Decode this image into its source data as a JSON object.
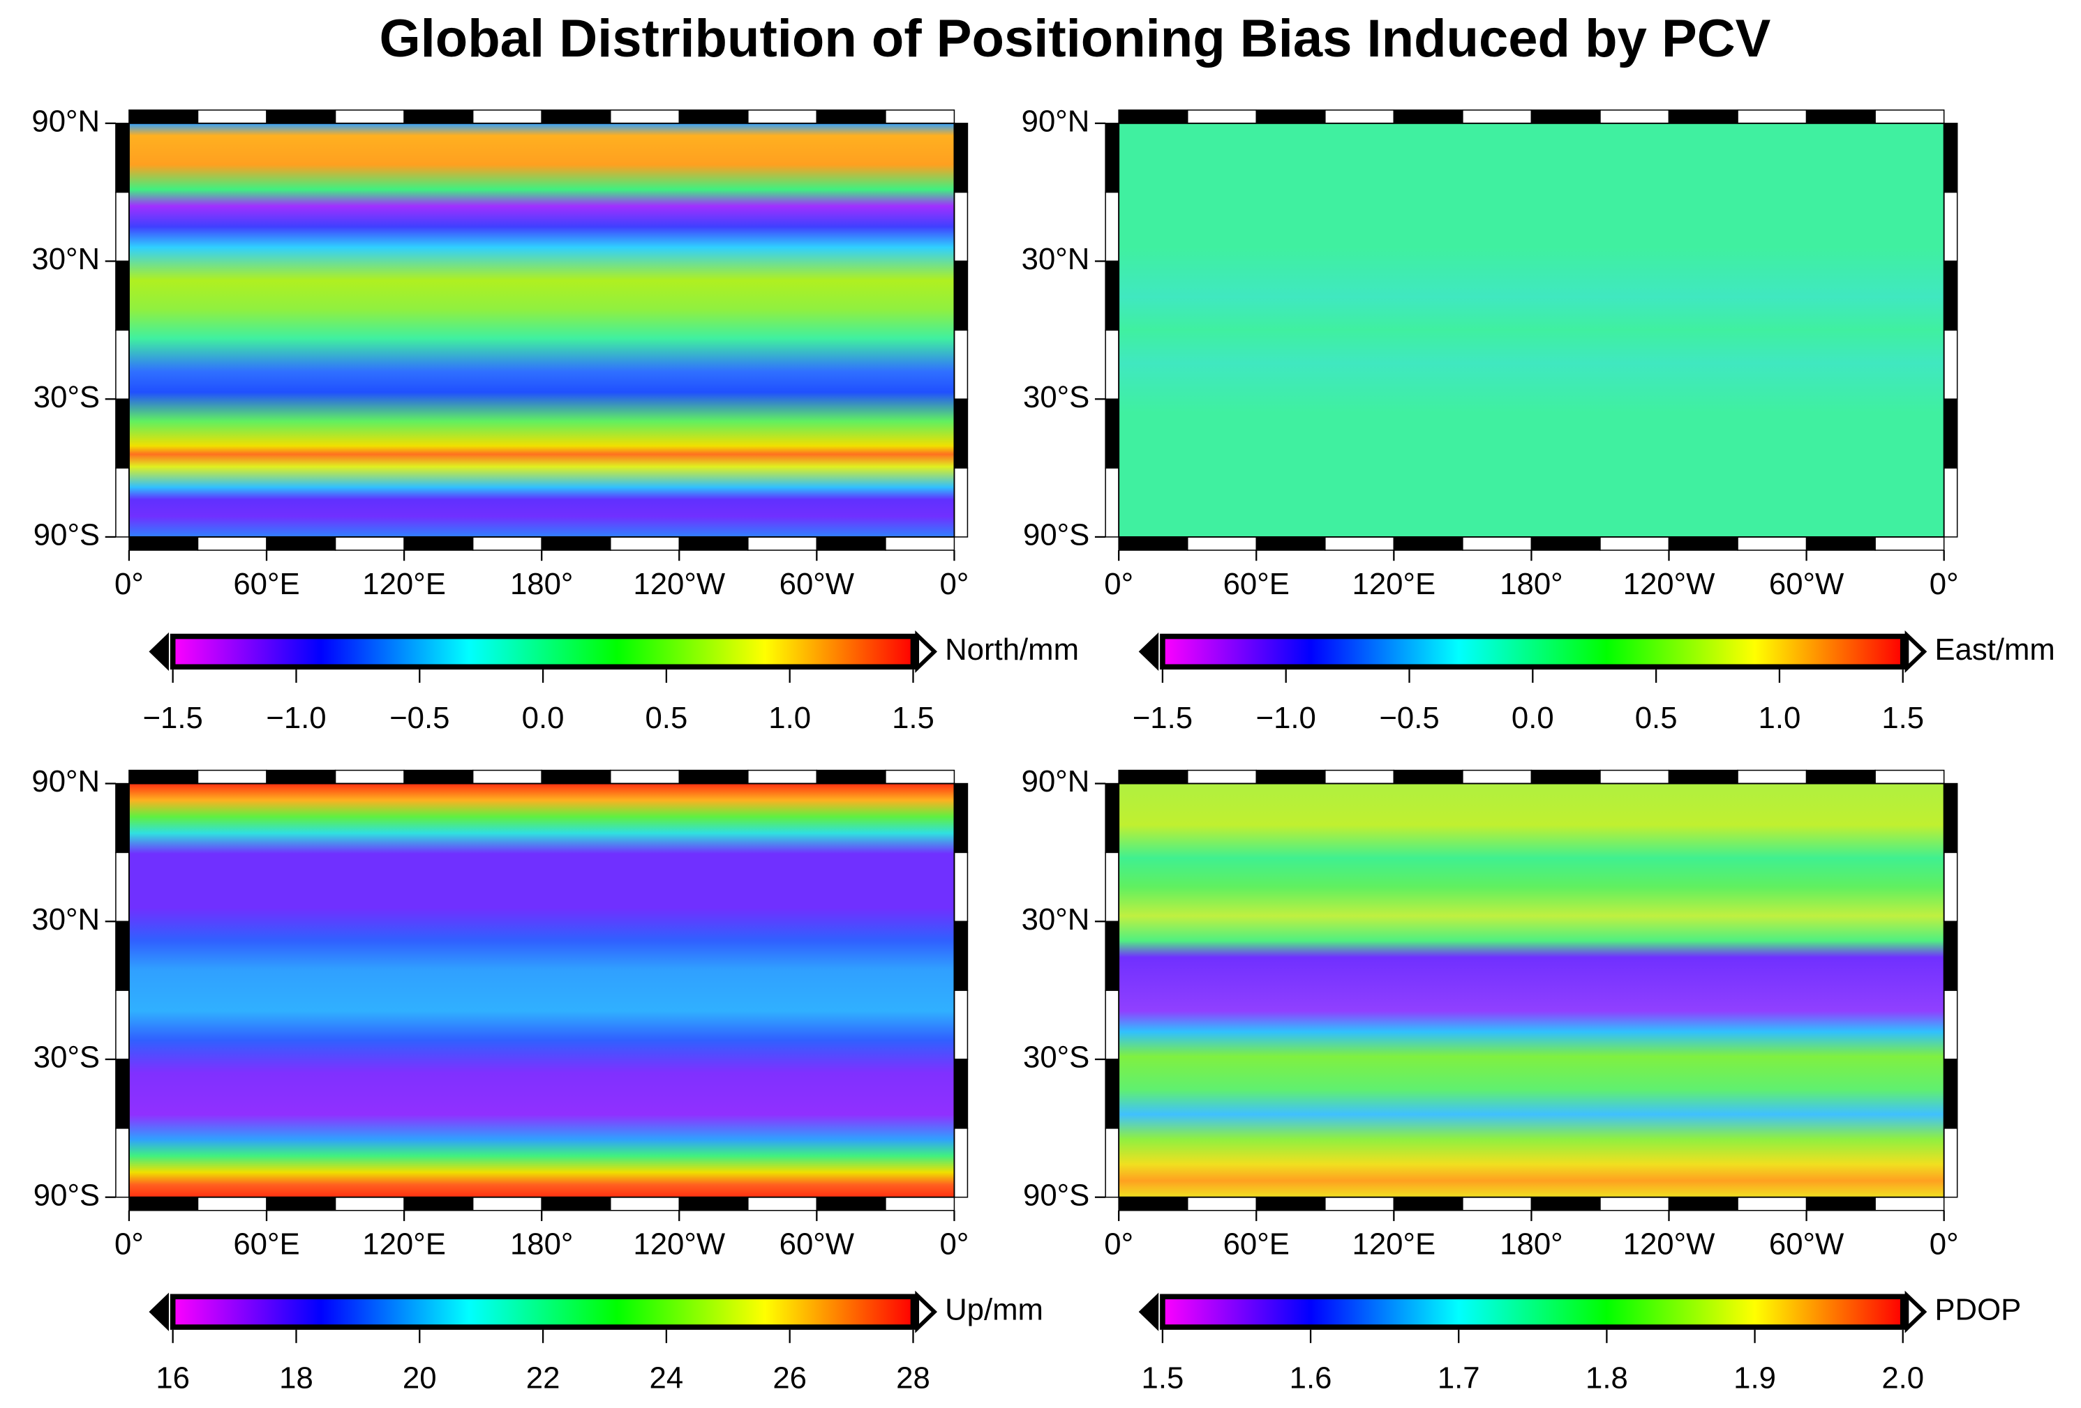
{
  "title": "Global Distribution of Positioning Bias Induced by PCV",
  "map": {
    "latlim": [
      -90,
      90
    ],
    "lonlim": [
      0,
      360
    ],
    "lat_ticks": [
      {
        "value": 90,
        "label": "90°N"
      },
      {
        "value": 30,
        "label": "30°N"
      },
      {
        "value": -30,
        "label": "30°S"
      },
      {
        "value": -90,
        "label": "90°S"
      }
    ],
    "lon_ticks": [
      {
        "value": 0,
        "label": "0°"
      },
      {
        "value": 60,
        "label": "60°E"
      },
      {
        "value": 120,
        "label": "120°E"
      },
      {
        "value": 180,
        "label": "180°"
      },
      {
        "value": 240,
        "label": "120°W"
      },
      {
        "value": 300,
        "label": "60°W"
      },
      {
        "value": 360,
        "label": "0°"
      }
    ]
  },
  "colormap": [
    "#ff00ff",
    "#0000ff",
    "#00ffff",
    "#00ff00",
    "#ffff00",
    "#ff0000"
  ],
  "panels": [
    {
      "colorbar": {
        "label": "North/mm",
        "lim": [
          -1.5,
          1.5
        ],
        "ticks": [
          {
            "value": -1.5,
            "label": "−1.5"
          },
          {
            "value": -1,
            "label": "−1.0"
          },
          {
            "value": -0.5,
            "label": "−0.5"
          },
          {
            "value": 0,
            "label": "0.0"
          },
          0.5,
          {
            "value": 1,
            "label": "1.0"
          },
          1.5
        ]
      }
    },
    {
      "colorbar": {
        "label": "East/mm",
        "lim": [
          -1.5,
          1.5
        ],
        "ticks": [
          {
            "value": -1.5,
            "label": "−1.5"
          },
          {
            "value": -1,
            "label": "−1.0"
          },
          {
            "value": -0.5,
            "label": "−0.5"
          },
          {
            "value": 0,
            "label": "0.0"
          },
          0.5,
          {
            "value": 1,
            "label": "1.0"
          },
          1.5
        ]
      }
    },
    {
      "colorbar": {
        "label": "Up/mm",
        "lim": [
          16,
          28
        ],
        "ticks": [
          16,
          18,
          20,
          22,
          24,
          26,
          28
        ]
      }
    },
    {
      "colorbar": {
        "label": "PDOP",
        "lim": [
          1.5,
          2.0
        ],
        "ticks": [
          1.5,
          1.6,
          1.7,
          1.8,
          1.9,
          {
            "value": 2,
            "label": "2.0"
          }
        ]
      }
    }
  ]
}
